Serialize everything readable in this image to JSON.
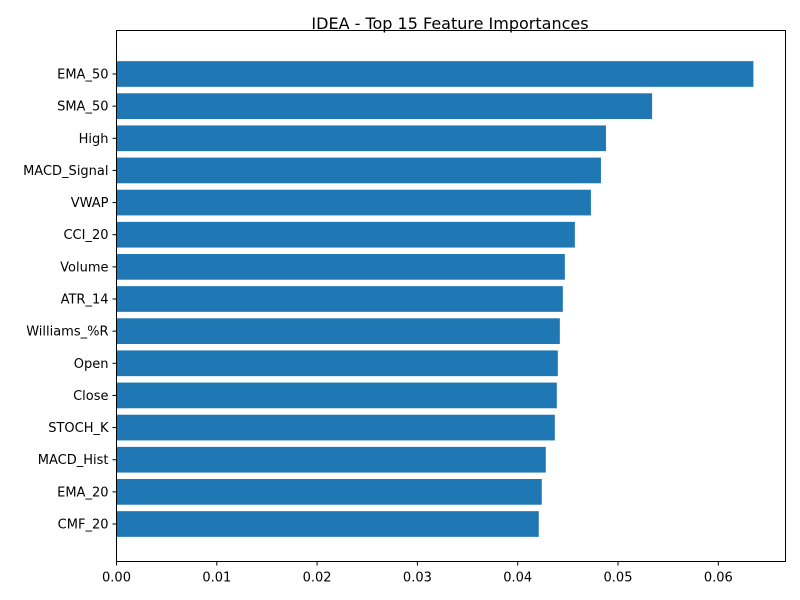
{
  "chart_data": {
    "type": "bar",
    "orientation": "horizontal",
    "title": "IDEA - Top 15 Feature Importances",
    "xlabel": "",
    "ylabel": "",
    "categories": [
      "EMA_50",
      "SMA_50",
      "High",
      "MACD_Signal",
      "VWAP",
      "CCI_20",
      "Volume",
      "ATR_14",
      "Williams_%R",
      "Open",
      "Close",
      "STOCH_K",
      "MACD_Hist",
      "EMA_20",
      "CMF_20"
    ],
    "values": [
      0.0635,
      0.0534,
      0.0488,
      0.0483,
      0.0473,
      0.0457,
      0.0447,
      0.0445,
      0.0442,
      0.044,
      0.0439,
      0.0437,
      0.0428,
      0.0424,
      0.0421
    ],
    "xlim": [
      0,
      0.0667
    ],
    "xticks": [
      "0.00",
      "0.01",
      "0.02",
      "0.03",
      "0.04",
      "0.05",
      "0.06"
    ],
    "grid": false,
    "bar_color": "#1f77b4"
  }
}
